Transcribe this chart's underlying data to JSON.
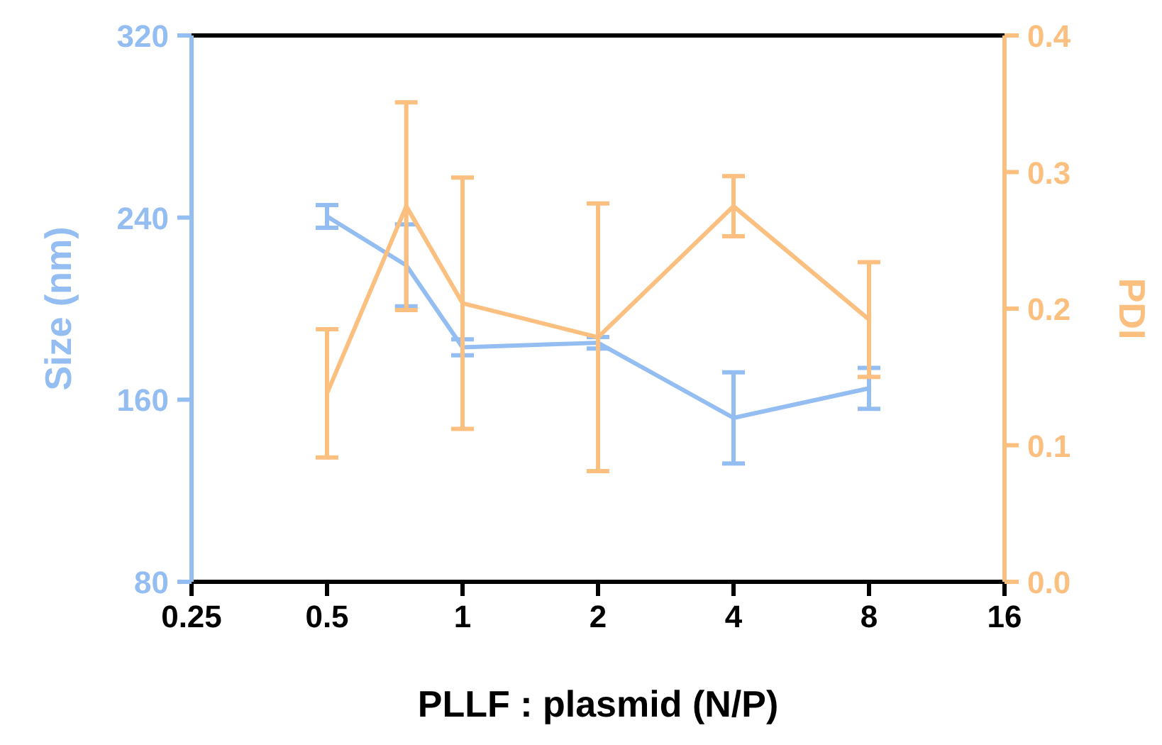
{
  "chart_data": {
    "type": "line",
    "xlabel": "PLLF : plasmid (N/P)",
    "ylabel": "Size (nm)",
    "y2label": "PDI",
    "log": "x",
    "x": [
      0.5,
      0.75,
      1,
      2,
      4,
      8
    ],
    "xlim": [
      0.25,
      16
    ],
    "xticks": [
      0.25,
      0.5,
      1,
      2,
      4,
      8,
      16
    ],
    "ylim": [
      80,
      320
    ],
    "yticks": [
      80,
      160,
      240,
      320
    ],
    "y2lim": [
      0,
      0.4
    ],
    "y2ticks": [
      {
        "value": 0,
        "label": "0.0"
      },
      0.1,
      0.2,
      0.3,
      0.4
    ],
    "grid": false,
    "marker": "none",
    "line_style": "solid",
    "series": [
      {
        "color": "#94bdf2",
        "values": [
          240.5,
          219,
          183,
          185,
          152,
          165
        ],
        "errors": [
          5,
          18,
          3.5,
          2.5,
          20,
          9
        ]
      },
      {
        "color": "#fbbf80",
        "axis": "y2",
        "values": [
          0.138,
          0.275,
          0.204,
          0.179,
          0.275,
          0.192
        ],
        "errors": [
          0.047,
          0.076,
          0.092,
          0.098,
          0.022,
          0.042
        ]
      }
    ]
  }
}
